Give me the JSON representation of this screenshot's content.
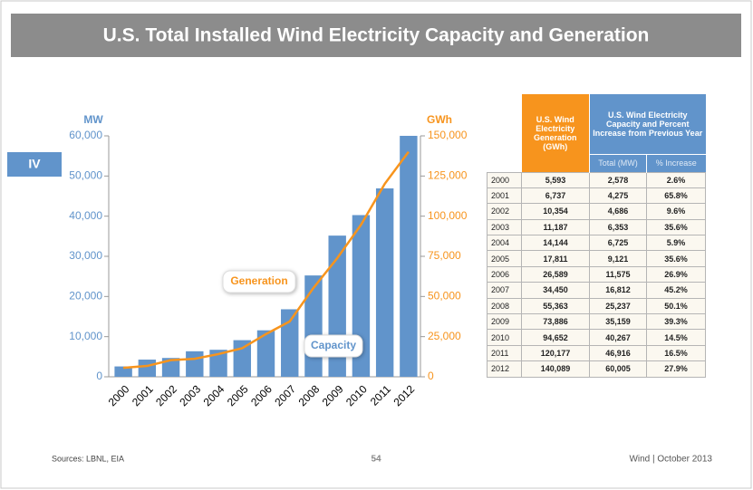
{
  "header": {
    "title": "U.S. Total Installed Wind Electricity Capacity and Generation"
  },
  "section_tab": "IV",
  "chart_data": {
    "type": "bar",
    "categories": [
      "2000",
      "2001",
      "2002",
      "2003",
      "2004",
      "2005",
      "2006",
      "2007",
      "2008",
      "2009",
      "2010",
      "2011",
      "2012"
    ],
    "y_label": "MW",
    "y2_label": "GWh",
    "series": [
      {
        "name": "Capacity",
        "type": "bar",
        "color": "#6194cb",
        "values": [
          2578,
          4275,
          4686,
          6353,
          6725,
          9121,
          11575,
          16812,
          25237,
          35159,
          40267,
          46916,
          60005
        ]
      },
      {
        "name": "Generation",
        "type": "line",
        "axis": "y2",
        "color": "#f7941d",
        "values": [
          5593,
          6737,
          10354,
          11187,
          14144,
          17811,
          26589,
          34450,
          55363,
          73886,
          94652,
          120177,
          140089
        ]
      }
    ],
    "ylim": [
      0,
      60000
    ],
    "yticks": [
      0,
      {
        "value": 10000,
        "label": "10,000"
      },
      {
        "value": 20000,
        "label": "20,000"
      },
      {
        "value": 30000,
        "label": "30,000"
      },
      {
        "value": 40000,
        "label": "40,000"
      },
      {
        "value": 50000,
        "label": "50,000"
      },
      {
        "value": 60000,
        "label": "60,000"
      }
    ],
    "y2lim": [
      0,
      150000
    ],
    "y2ticks": [
      0,
      {
        "value": 25000,
        "label": "25,000"
      },
      {
        "value": 50000,
        "label": "50,000"
      },
      {
        "value": 75000,
        "label": "75,000"
      },
      {
        "value": 100000,
        "label": "100,000"
      },
      {
        "value": 125000,
        "label": "125,000"
      },
      {
        "value": 150000,
        "label": "150,000"
      }
    ],
    "grid": false
  },
  "table": {
    "headers": {
      "generation": "U.S. Wind Electricity Generation (GWh)",
      "capacity": "U.S. Wind Electricity Capacity and Percent Increase from Previous Year",
      "total": "Total (MW)",
      "increase": "% Increase"
    },
    "rows": [
      [
        "2000",
        "5,593",
        "2,578",
        "2.6%"
      ],
      [
        "2001",
        "6,737",
        "4,275",
        "65.8%"
      ],
      [
        "2002",
        "10,354",
        "4,686",
        "9.6%"
      ],
      [
        "2003",
        "11,187",
        "6,353",
        "35.6%"
      ],
      [
        "2004",
        "14,144",
        "6,725",
        "5.9%"
      ],
      [
        "2005",
        "17,811",
        "9,121",
        "35.6%"
      ],
      [
        "2006",
        "26,589",
        "11,575",
        "26.9%"
      ],
      [
        "2007",
        "34,450",
        "16,812",
        "45.2%"
      ],
      [
        "2008",
        "55,363",
        "25,237",
        "50.1%"
      ],
      [
        "2009",
        "73,886",
        "35,159",
        "39.3%"
      ],
      [
        "2010",
        "94,652",
        "40,267",
        "14.5%"
      ],
      [
        "2011",
        "120,177",
        "46,916",
        "16.5%"
      ],
      [
        "2012",
        "140,089",
        "60,005",
        "27.9%"
      ]
    ]
  },
  "footer": {
    "source": "Sources: LBNL, EIA",
    "page": "54",
    "note": "Wind | October 2013"
  }
}
